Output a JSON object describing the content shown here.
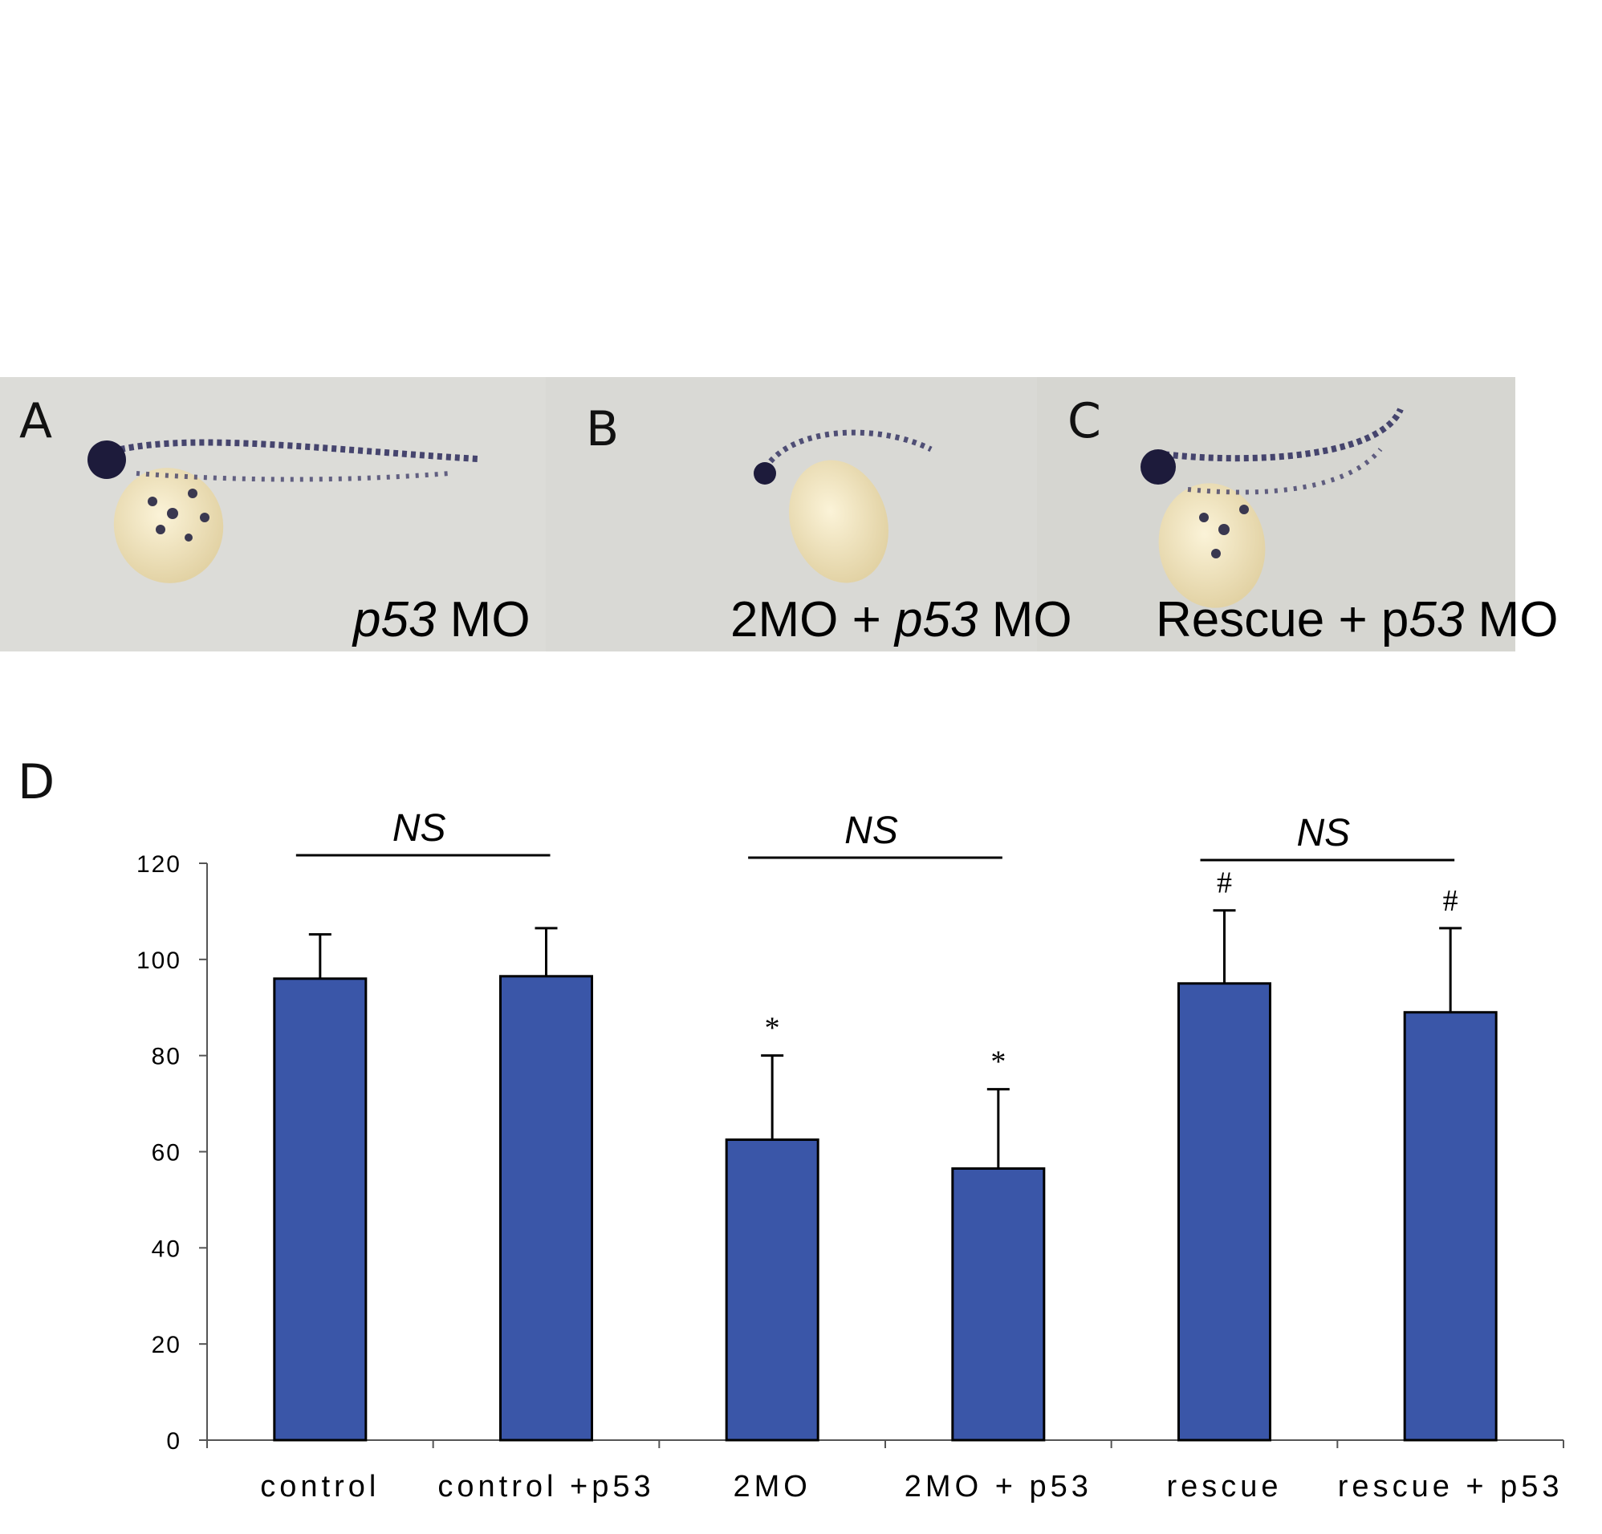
{
  "panels": [
    {
      "letter": "A",
      "caption_italic": "p53",
      "caption_plain": " MO",
      "caption_prefix": ""
    },
    {
      "letter": "B",
      "caption_prefix": "2MO + ",
      "caption_italic": "p53",
      "caption_plain": " MO"
    },
    {
      "letter": "C",
      "caption_prefix": "Rescue + p",
      "caption_italic": "53",
      "caption_plain": " MO"
    }
  ],
  "panel_d_letter": "D",
  "colors": {
    "bar": "#3a56a8",
    "photo_bg": "#dcdcd8",
    "embryo_yolk": "#efe4c3",
    "embryo_stain": "#2c2a5c"
  },
  "chart_data": {
    "type": "bar",
    "categories": [
      "control",
      "control +p53",
      "2MO",
      "2MO + p53",
      "rescue",
      "rescue + p53"
    ],
    "values": [
      96,
      96.5,
      62.5,
      56.5,
      95,
      89
    ],
    "errors": [
      9.2,
      10,
      17.5,
      16.5,
      15.2,
      17.5
    ],
    "significance": [
      "",
      "",
      "*",
      "*",
      "#",
      "#"
    ],
    "ylim": [
      0,
      120
    ],
    "yticks": [
      0,
      20,
      40,
      60,
      80,
      100,
      120
    ],
    "ns_brackets": [
      {
        "label": "NS",
        "from": 0,
        "to": 1
      },
      {
        "label": "NS",
        "from": 2,
        "to": 3
      },
      {
        "label": "NS",
        "from": 4,
        "to": 5
      }
    ],
    "title": "",
    "xlabel": "",
    "ylabel": "",
    "grid": false
  }
}
